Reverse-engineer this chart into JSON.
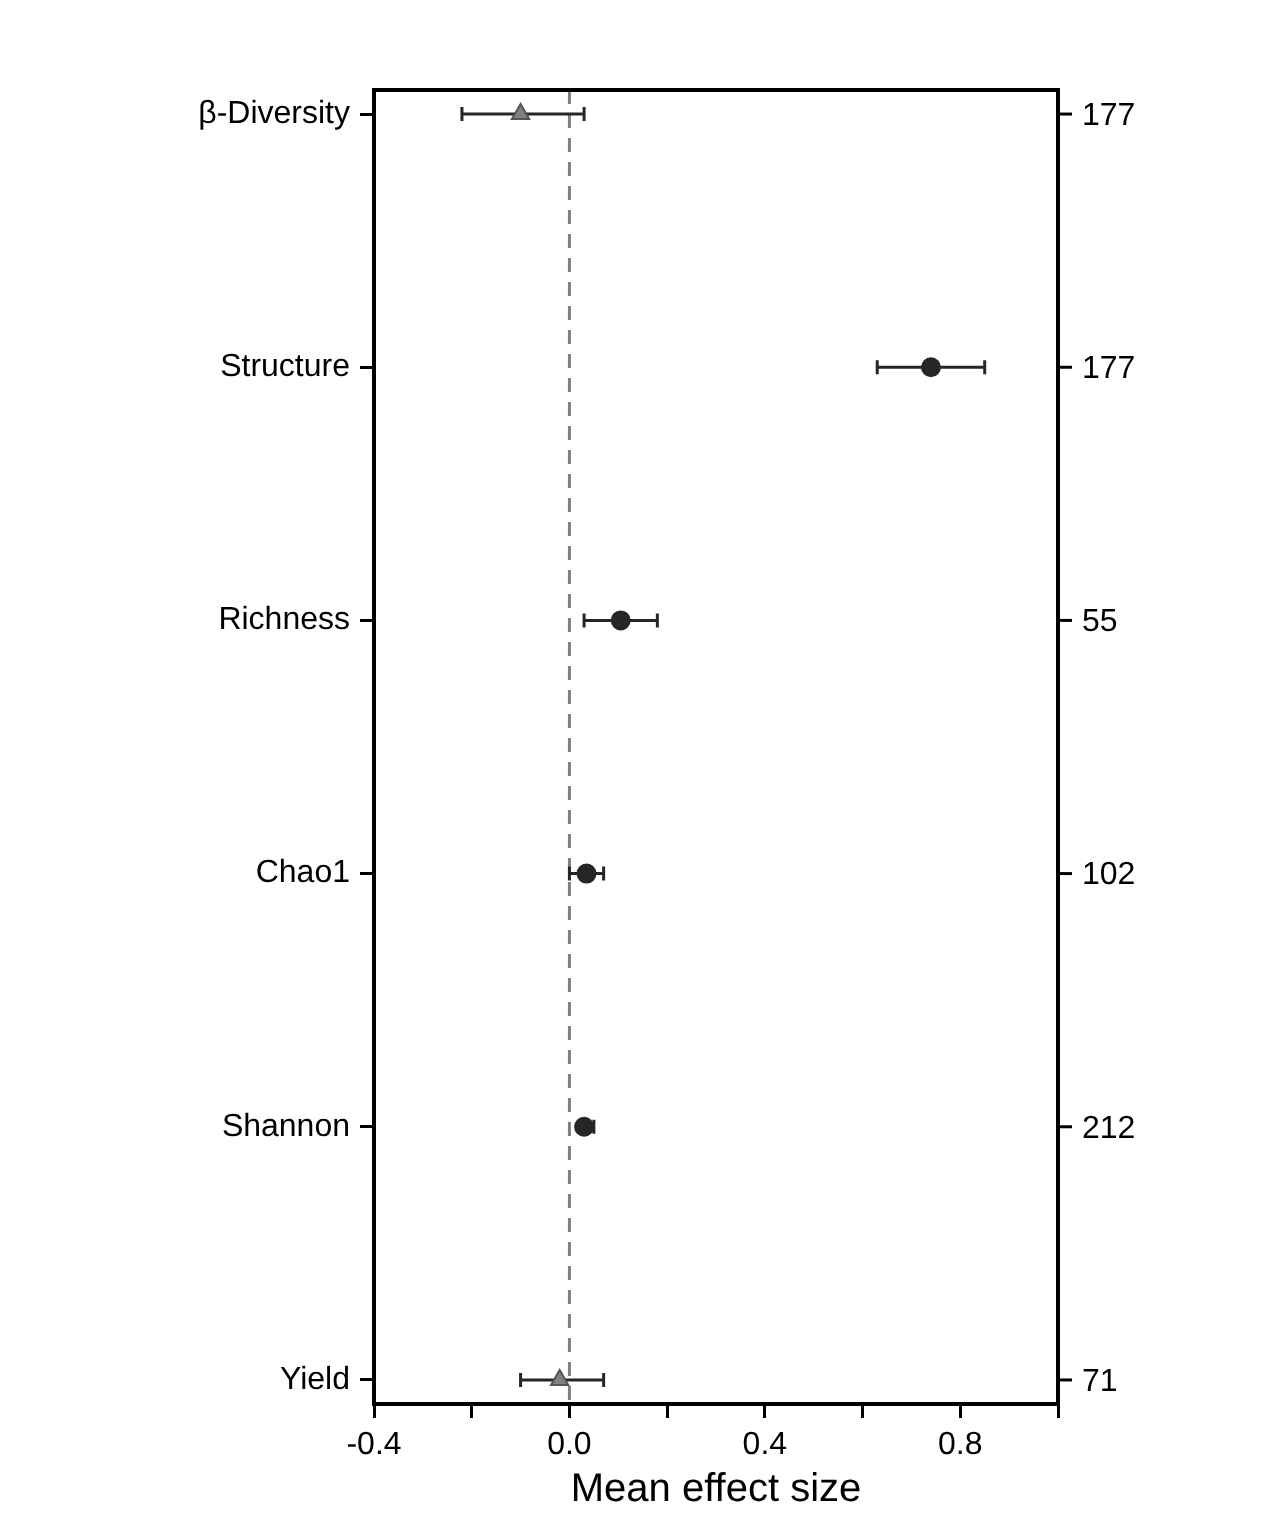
{
  "chart_data": {
    "type": "scatter",
    "orientation": "horizontal",
    "xlabel": "Mean effect size",
    "categories": [
      "β-Diversity",
      "Structure",
      "Richness",
      "Chao1",
      "Shannon",
      "Yield"
    ],
    "xlim": [
      -0.4,
      1.0
    ],
    "xticks": [
      -0.4,
      {
        "value": -0.2,
        "label": null
      },
      {
        "value": 0,
        "label": "0.0"
      },
      {
        "value": 0.2,
        "label": null
      },
      0.4,
      {
        "value": 0.6,
        "label": null
      },
      0.8,
      {
        "value": 1.0,
        "label": null
      }
    ],
    "grid": false,
    "legend": false,
    "series": [
      {
        "color": "#262626",
        "marker": "circle",
        "values": [
          null,
          0.74,
          0.105,
          0.035,
          0.03,
          null
        ],
        "errors": [
          null,
          [
            0.63,
            0.85
          ],
          [
            0.03,
            0.18
          ],
          [
            0.0,
            0.07
          ],
          [
            0.02,
            0.05
          ],
          null
        ]
      },
      {
        "color": "#808080",
        "marker": "triangle",
        "values": [
          -0.1,
          null,
          null,
          null,
          null,
          -0.02
        ],
        "errors": [
          [
            -0.22,
            0.03
          ],
          null,
          null,
          null,
          null,
          [
            -0.1,
            0.07
          ]
        ]
      }
    ],
    "ref_lines": [
      {
        "axis": "x",
        "value": 0,
        "color": "#808080",
        "line_style": "dashed"
      }
    ],
    "annotations": [
      "177",
      "177",
      "55",
      "102",
      "212",
      "71"
    ]
  }
}
